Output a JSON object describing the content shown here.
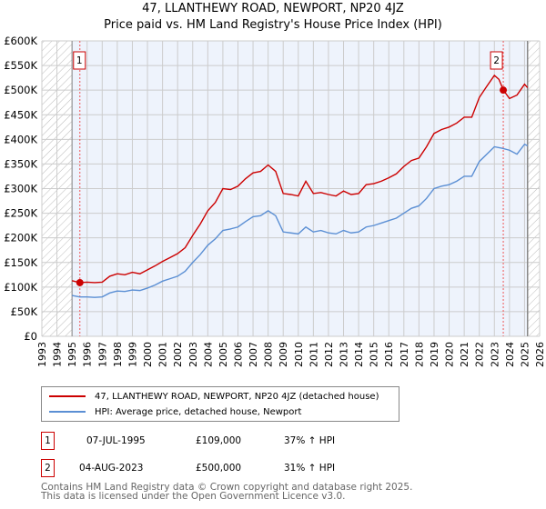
{
  "chart_data": {
    "type": "line",
    "title": "47, LLANTHEWY ROAD, NEWPORT, NP20 4JZ",
    "subtitle": "Price paid vs. HM Land Registry's House Price Index (HPI)",
    "xlim": [
      1993,
      2026
    ],
    "ylim": [
      0,
      600000
    ],
    "x_ticks": [
      "1993",
      "1994",
      "1995",
      "1996",
      "1997",
      "1998",
      "1999",
      "2000",
      "2001",
      "2002",
      "2003",
      "2004",
      "2005",
      "2006",
      "2007",
      "2008",
      "2009",
      "2010",
      "2011",
      "2012",
      "2013",
      "2014",
      "2015",
      "2016",
      "2017",
      "2018",
      "2019",
      "2020",
      "2021",
      "2022",
      "2023",
      "2024",
      "2025",
      "2026"
    ],
    "y_ticks": [
      {
        "v": 0,
        "label": "£0"
      },
      {
        "v": 50000,
        "label": "£50K"
      },
      {
        "v": 100000,
        "label": "£100K"
      },
      {
        "v": 150000,
        "label": "£150K"
      },
      {
        "v": 200000,
        "label": "£200K"
      },
      {
        "v": 250000,
        "label": "£250K"
      },
      {
        "v": 300000,
        "label": "£300K"
      },
      {
        "v": 350000,
        "label": "£350K"
      },
      {
        "v": 400000,
        "label": "£400K"
      },
      {
        "v": 450000,
        "label": "£450K"
      },
      {
        "v": 500000,
        "label": "£500K"
      },
      {
        "v": 550000,
        "label": "£550K"
      },
      {
        "v": 600000,
        "label": "£600K"
      }
    ],
    "grid": true,
    "hatched_ranges": [
      [
        1993,
        1995
      ],
      [
        2025.2,
        2026
      ]
    ],
    "series": [
      {
        "name": "47, LLANTHEWY ROAD, NEWPORT, NP20 4JZ (detached house)",
        "color": "#cc0000",
        "x": [
          1995,
          1995.5,
          1996,
          1996.5,
          1997,
          1997.5,
          1998,
          1998.5,
          1999,
          1999.5,
          2000,
          2000.5,
          2001,
          2001.5,
          2002,
          2002.5,
          2003,
          2003.5,
          2004,
          2004.5,
          2005,
          2005.5,
          2006,
          2006.5,
          2007,
          2007.5,
          2008,
          2008.5,
          2009,
          2009.5,
          2010,
          2010.5,
          2011,
          2011.5,
          2012,
          2012.5,
          2013,
          2013.5,
          2014,
          2014.5,
          2015,
          2015.5,
          2016,
          2016.5,
          2017,
          2017.5,
          2018,
          2018.5,
          2019,
          2019.5,
          2020,
          2020.5,
          2021,
          2021.5,
          2022,
          2022.5,
          2023,
          2023.3,
          2023.6,
          2024,
          2024.5,
          2025,
          2025.2
        ],
        "y": [
          113000,
          109000,
          110000,
          109000,
          110000,
          122000,
          127000,
          125000,
          130000,
          127000,
          135000,
          143000,
          152000,
          160000,
          168000,
          180000,
          205000,
          228000,
          255000,
          272000,
          300000,
          298000,
          305000,
          320000,
          332000,
          335000,
          348000,
          335000,
          290000,
          288000,
          285000,
          315000,
          290000,
          292000,
          288000,
          285000,
          295000,
          288000,
          290000,
          308000,
          310000,
          315000,
          322000,
          330000,
          345000,
          357000,
          362000,
          385000,
          412000,
          420000,
          425000,
          433000,
          445000,
          445000,
          485000,
          508000,
          530000,
          522000,
          500000,
          483000,
          490000,
          512000,
          505000
        ]
      },
      {
        "name": "HPI: Average price, detached house, Newport",
        "color": "#5b8fd4",
        "x": [
          1995,
          1995.5,
          1996,
          1996.5,
          1997,
          1997.5,
          1998,
          1998.5,
          1999,
          1999.5,
          2000,
          2000.5,
          2001,
          2001.5,
          2002,
          2002.5,
          2003,
          2003.5,
          2004,
          2004.5,
          2005,
          2005.5,
          2006,
          2006.5,
          2007,
          2007.5,
          2008,
          2008.5,
          2009,
          2009.5,
          2010,
          2010.5,
          2011,
          2011.5,
          2012,
          2012.5,
          2013,
          2013.5,
          2014,
          2014.5,
          2015,
          2015.5,
          2016,
          2016.5,
          2017,
          2017.5,
          2018,
          2018.5,
          2019,
          2019.5,
          2020,
          2020.5,
          2021,
          2021.5,
          2022,
          2022.5,
          2023,
          2023.5,
          2024,
          2024.5,
          2025,
          2025.2
        ],
        "y": [
          83000,
          80000,
          80000,
          79000,
          80000,
          88000,
          92000,
          91000,
          94000,
          93000,
          98000,
          104000,
          112000,
          117000,
          122000,
          132000,
          150000,
          166000,
          185000,
          198000,
          215000,
          218000,
          222000,
          233000,
          243000,
          245000,
          255000,
          245000,
          212000,
          210000,
          208000,
          222000,
          212000,
          215000,
          210000,
          208000,
          215000,
          210000,
          212000,
          222000,
          225000,
          230000,
          235000,
          240000,
          250000,
          260000,
          265000,
          280000,
          300000,
          305000,
          308000,
          315000,
          325000,
          325000,
          355000,
          370000,
          385000,
          382000,
          378000,
          370000,
          390000,
          387000
        ]
      }
    ],
    "sales": [
      {
        "id": "1",
        "x": 1995.52,
        "y": 109000,
        "date": "07-JUL-1995",
        "price": "£109,000",
        "hpi": "37% ↑ HPI"
      },
      {
        "id": "2",
        "x": 2023.59,
        "y": 500000,
        "date": "04-AUG-2023",
        "price": "£500,000",
        "hpi": "31% ↑ HPI"
      }
    ]
  },
  "footer": {
    "line1": "Contains HM Land Registry data © Crown copyright and database right 2025.",
    "line2": "This data is licensed under the Open Government Licence v3.0."
  }
}
